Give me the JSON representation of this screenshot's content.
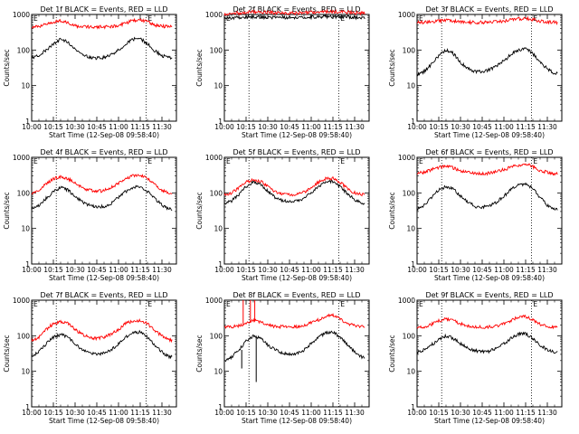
{
  "common": {
    "xlabel": "Start Time (12-Sep-08 09:58:40)",
    "ylabel": "Counts/sec",
    "y_scale": "log",
    "ylim": [
      1,
      1000
    ],
    "y_ticks": [
      1,
      10,
      100,
      1000
    ],
    "y_tick_labels": [
      "1",
      "10",
      "100",
      "1000"
    ],
    "x_ticks": [
      "10:00",
      "10:15",
      "10:30",
      "10:45",
      "11:00",
      "11:15",
      "11:30"
    ],
    "x_tick_minutes": [
      0,
      15,
      30,
      45,
      60,
      75,
      90
    ],
    "xlim_minutes": [
      0,
      100
    ],
    "markers": [
      {
        "label": "E",
        "minute": 17
      },
      {
        "label": "E",
        "minute": 79
      }
    ],
    "colors": {
      "events": "#000000",
      "lld": "#ff0000"
    }
  },
  "chart_data": [
    {
      "type": "line",
      "title": "Det 1f BLACK = Events, RED = LLD",
      "xlabel": "Start Time (12-Sep-08 09:58:40)",
      "ylabel": "Counts/sec",
      "x": [
        0,
        5,
        10,
        15,
        20,
        25,
        30,
        35,
        40,
        45,
        50,
        55,
        60,
        65,
        70,
        75,
        80,
        85,
        90,
        95
      ],
      "series": [
        {
          "name": "Events",
          "color": "#000000",
          "values": [
            60,
            70,
            100,
            150,
            200,
            170,
            110,
            75,
            62,
            60,
            62,
            75,
            100,
            150,
            200,
            210,
            150,
            95,
            70,
            60
          ]
        },
        {
          "name": "LLD",
          "color": "#ff0000",
          "values": [
            450,
            460,
            520,
            600,
            680,
            600,
            480,
            450,
            450,
            450,
            450,
            460,
            500,
            560,
            680,
            720,
            620,
            500,
            460,
            460
          ]
        }
      ]
    },
    {
      "type": "line",
      "title": "Det 2f BLACK = Events, RED = LLD",
      "xlabel": "Start Time (12-Sep-08 09:58:40)",
      "ylabel": "Counts/sec",
      "x": [
        0,
        5,
        10,
        15,
        20,
        25,
        30,
        35,
        40,
        45,
        50,
        55,
        60,
        65,
        70,
        75,
        80,
        85,
        90,
        95
      ],
      "series": [
        {
          "name": "Events",
          "color": "#000000",
          "values": [
            800,
            800,
            820,
            850,
            850,
            840,
            830,
            820,
            810,
            820,
            820,
            830,
            840,
            850,
            860,
            860,
            850,
            840,
            830,
            820
          ]
        },
        {
          "name": "LLD",
          "color": "#ff0000",
          "values": [
            1000,
            1050,
            1100,
            1150,
            1200,
            1180,
            1150,
            1120,
            1100,
            1100,
            1100,
            1120,
            1150,
            1180,
            1200,
            1200,
            1180,
            1150,
            1120,
            1100
          ]
        }
      ]
    },
    {
      "type": "line",
      "title": "Det 3f BLACK = Events, RED = LLD",
      "xlabel": "Start Time (12-Sep-08 09:58:40)",
      "ylabel": "Counts/sec",
      "x": [
        0,
        5,
        10,
        15,
        20,
        25,
        30,
        35,
        40,
        45,
        50,
        55,
        60,
        65,
        70,
        75,
        80,
        85,
        90,
        95
      ],
      "series": [
        {
          "name": "Events",
          "color": "#000000",
          "values": [
            20,
            25,
            40,
            70,
            100,
            80,
            45,
            30,
            25,
            25,
            28,
            35,
            50,
            75,
            100,
            110,
            80,
            45,
            30,
            22
          ]
        },
        {
          "name": "LLD",
          "color": "#ff0000",
          "values": [
            600,
            600,
            620,
            650,
            700,
            650,
            620,
            600,
            600,
            600,
            600,
            620,
            650,
            700,
            750,
            780,
            720,
            650,
            620,
            600
          ]
        }
      ]
    },
    {
      "type": "line",
      "title": "Det 4f BLACK = Events, RED = LLD",
      "xlabel": "Start Time (12-Sep-08 09:58:40)",
      "ylabel": "Counts/sec",
      "x": [
        0,
        5,
        10,
        15,
        20,
        25,
        30,
        35,
        40,
        45,
        50,
        55,
        60,
        65,
        70,
        75,
        80,
        85,
        90,
        95
      ],
      "series": [
        {
          "name": "Events",
          "color": "#000000",
          "values": [
            35,
            45,
            70,
            110,
            140,
            120,
            80,
            55,
            45,
            40,
            42,
            50,
            75,
            110,
            140,
            150,
            110,
            70,
            45,
            35
          ]
        },
        {
          "name": "LLD",
          "color": "#ff0000",
          "values": [
            100,
            120,
            180,
            250,
            280,
            250,
            190,
            140,
            120,
            110,
            115,
            140,
            190,
            250,
            300,
            320,
            250,
            170,
            120,
            100
          ]
        }
      ]
    },
    {
      "type": "line",
      "title": "Det 5f BLACK = Events, RED = LLD",
      "xlabel": "Start Time (12-Sep-08 09:58:40)",
      "ylabel": "Counts/sec",
      "x": [
        0,
        5,
        10,
        15,
        20,
        25,
        30,
        35,
        40,
        45,
        50,
        55,
        60,
        65,
        70,
        75,
        80,
        85,
        90,
        95
      ],
      "series": [
        {
          "name": "Events",
          "color": "#000000",
          "values": [
            50,
            60,
            90,
            150,
            200,
            170,
            110,
            75,
            60,
            55,
            58,
            70,
            100,
            150,
            200,
            210,
            150,
            95,
            65,
            50
          ]
        },
        {
          "name": "LLD",
          "color": "#ff0000",
          "values": [
            90,
            100,
            140,
            200,
            240,
            210,
            150,
            110,
            95,
            90,
            92,
            105,
            140,
            200,
            250,
            260,
            200,
            130,
            100,
            90
          ]
        }
      ]
    },
    {
      "type": "line",
      "title": "Det 6f BLACK = Events, RED = LLD",
      "xlabel": "Start Time (12-Sep-08 09:58:40)",
      "ylabel": "Counts/sec",
      "x": [
        0,
        5,
        10,
        15,
        20,
        25,
        30,
        35,
        40,
        45,
        50,
        55,
        60,
        65,
        70,
        75,
        80,
        85,
        90,
        95
      ],
      "series": [
        {
          "name": "Events",
          "color": "#000000",
          "values": [
            35,
            45,
            75,
            120,
            150,
            130,
            80,
            55,
            42,
            40,
            42,
            55,
            80,
            130,
            170,
            180,
            130,
            75,
            45,
            35
          ]
        },
        {
          "name": "LLD",
          "color": "#ff0000",
          "values": [
            350,
            380,
            450,
            520,
            560,
            500,
            420,
            380,
            360,
            350,
            360,
            400,
            450,
            520,
            600,
            650,
            550,
            420,
            380,
            350
          ]
        }
      ]
    },
    {
      "type": "line",
      "title": "Det 7f BLACK = Events, RED = LLD",
      "xlabel": "Start Time (12-Sep-08 09:58:40)",
      "ylabel": "Counts/sec",
      "x": [
        0,
        5,
        10,
        15,
        20,
        25,
        30,
        35,
        40,
        45,
        50,
        55,
        60,
        65,
        70,
        75,
        80,
        85,
        90,
        95
      ],
      "series": [
        {
          "name": "Events",
          "color": "#000000",
          "values": [
            25,
            35,
            60,
            90,
            110,
            90,
            60,
            40,
            32,
            30,
            32,
            40,
            60,
            90,
            120,
            130,
            90,
            55,
            35,
            25
          ]
        },
        {
          "name": "LLD",
          "color": "#ff0000",
          "values": [
            70,
            90,
            150,
            220,
            250,
            220,
            150,
            110,
            90,
            85,
            90,
            110,
            150,
            220,
            260,
            270,
            220,
            140,
            100,
            75
          ]
        }
      ]
    },
    {
      "type": "line",
      "title": "Det 8f BLACK = Events, RED = LLD",
      "xlabel": "Start Time (12-Sep-08 09:58:40)",
      "ylabel": "Counts/sec",
      "x": [
        0,
        5,
        10,
        15,
        20,
        25,
        30,
        35,
        40,
        45,
        50,
        55,
        60,
        65,
        70,
        75,
        80,
        85,
        90,
        95
      ],
      "series": [
        {
          "name": "Events",
          "color": "#000000",
          "values": [
            20,
            25,
            40,
            70,
            100,
            85,
            55,
            40,
            32,
            30,
            32,
            40,
            60,
            90,
            120,
            130,
            90,
            55,
            35,
            25
          ]
        },
        {
          "name": "LLD",
          "color": "#ff0000",
          "values": [
            180,
            180,
            190,
            230,
            270,
            240,
            200,
            180,
            180,
            180,
            180,
            190,
            230,
            280,
            350,
            380,
            300,
            220,
            190,
            180
          ]
        }
      ],
      "note_spikes": [
        {
          "series": "LLD",
          "minute": 13,
          "value": 1000
        },
        {
          "series": "LLD",
          "minute": 18,
          "value": 1000
        },
        {
          "series": "LLD",
          "minute": 21,
          "value": 1000
        },
        {
          "series": "Events",
          "minute": 12,
          "value": 12
        },
        {
          "series": "Events",
          "minute": 22,
          "value": 5
        }
      ]
    },
    {
      "type": "line",
      "title": "Det 9f BLACK = Events, RED = LLD",
      "xlabel": "Start Time (12-Sep-08 09:58:40)",
      "ylabel": "Counts/sec",
      "x": [
        0,
        5,
        10,
        15,
        20,
        25,
        30,
        35,
        40,
        45,
        50,
        55,
        60,
        65,
        70,
        75,
        80,
        85,
        90,
        95
      ],
      "series": [
        {
          "name": "Events",
          "color": "#000000",
          "values": [
            35,
            40,
            55,
            80,
            100,
            85,
            60,
            45,
            38,
            35,
            37,
            45,
            60,
            85,
            110,
            115,
            85,
            55,
            40,
            35
          ]
        },
        {
          "name": "LLD",
          "color": "#ff0000",
          "values": [
            170,
            180,
            210,
            260,
            300,
            270,
            220,
            190,
            180,
            175,
            178,
            190,
            220,
            270,
            330,
            350,
            280,
            210,
            180,
            170
          ]
        }
      ]
    }
  ]
}
